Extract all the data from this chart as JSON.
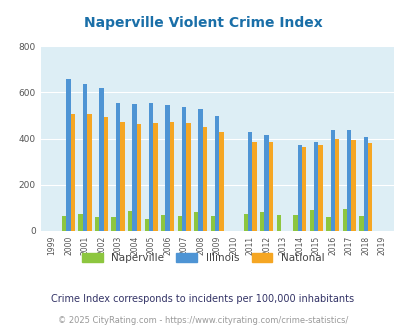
{
  "title": "Naperville Violent Crime Index",
  "years": [
    1999,
    2000,
    2001,
    2002,
    2003,
    2004,
    2005,
    2006,
    2007,
    2008,
    2009,
    2010,
    2011,
    2012,
    2013,
    2014,
    2015,
    2016,
    2017,
    2018,
    2019
  ],
  "naperville": [
    0,
    65,
    75,
    60,
    60,
    88,
    50,
    68,
    65,
    83,
    65,
    0,
    72,
    82,
    68,
    70,
    90,
    62,
    95,
    65,
    0
  ],
  "illinois": [
    0,
    657,
    635,
    620,
    555,
    550,
    553,
    547,
    537,
    528,
    500,
    0,
    427,
    415,
    0,
    372,
    385,
    437,
    437,
    405,
    0
  ],
  "national": [
    0,
    507,
    505,
    494,
    472,
    463,
    468,
    474,
    466,
    452,
    428,
    0,
    387,
    387,
    0,
    365,
    373,
    399,
    394,
    381,
    0
  ],
  "color_naperville": "#8dc63f",
  "color_illinois": "#4e94d4",
  "color_national": "#f5a623",
  "bg_color": "#ddeef5",
  "ylim": [
    0,
    800
  ],
  "yticks": [
    0,
    200,
    400,
    600,
    800
  ],
  "footnote1": "Crime Index corresponds to incidents per 100,000 inhabitants",
  "footnote2": "© 2025 CityRating.com - https://www.cityrating.com/crime-statistics/",
  "bar_width": 0.27
}
